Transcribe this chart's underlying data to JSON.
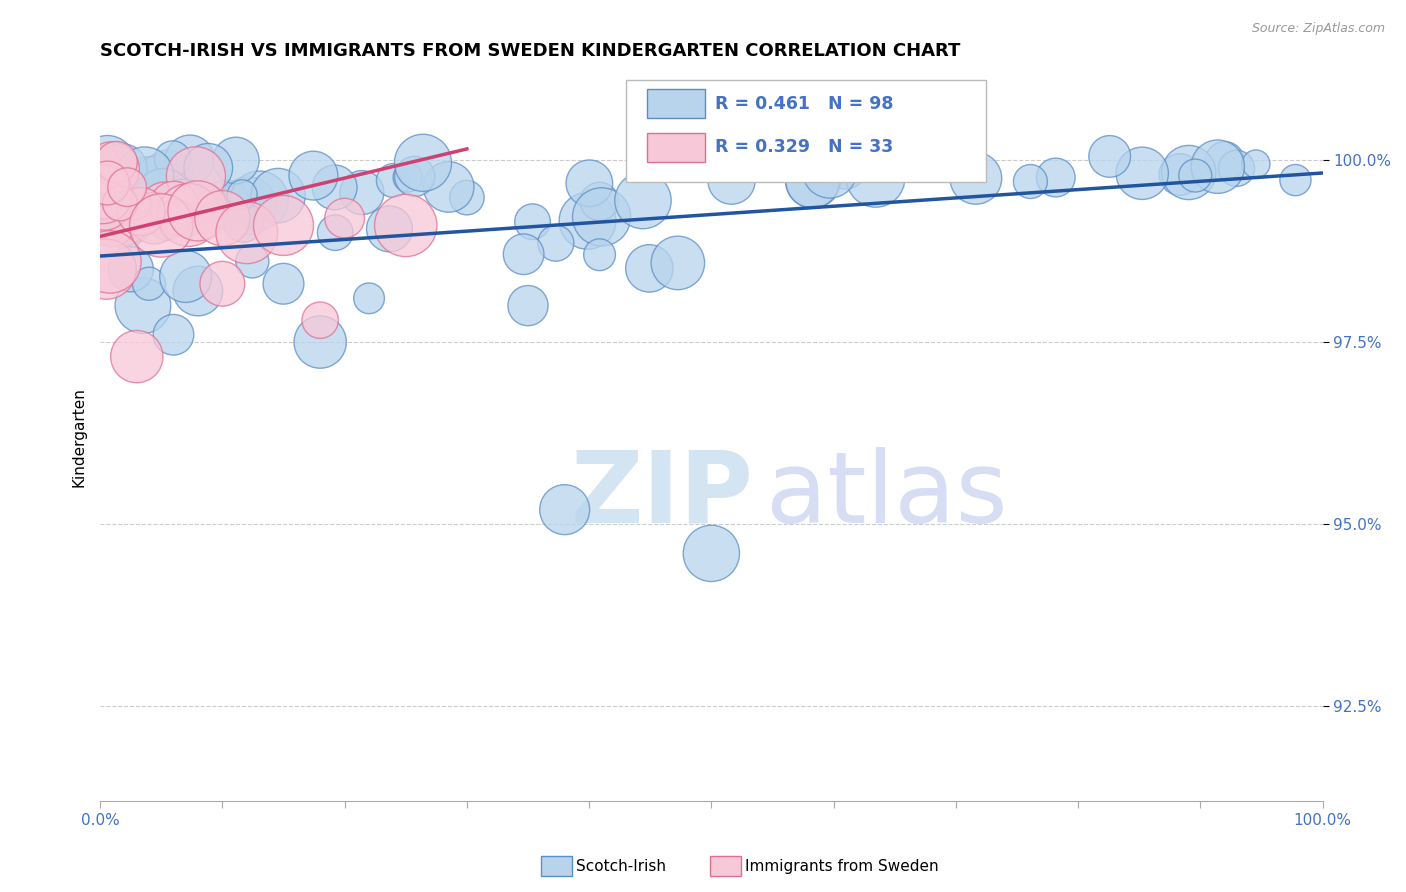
{
  "title": "SCOTCH-IRISH VS IMMIGRANTS FROM SWEDEN KINDERGARTEN CORRELATION CHART",
  "source": "Source: ZipAtlas.com",
  "ylabel": "Kindergarten",
  "ytick_labels": [
    "92.5%",
    "95.0%",
    "97.5%",
    "100.0%"
  ],
  "ytick_values": [
    92.5,
    95.0,
    97.5,
    100.0
  ],
  "xmin": 0.0,
  "xmax": 100.0,
  "ymin": 91.2,
  "ymax": 101.2,
  "blue_R": 0.461,
  "blue_N": 98,
  "pink_R": 0.329,
  "pink_N": 33,
  "blue_color": "#b8d4ed",
  "blue_edge_color": "#5b8ec4",
  "pink_color": "#f7c8d8",
  "pink_edge_color": "#e07090",
  "blue_line_color": "#2255a0",
  "pink_line_color": "#d04070",
  "watermark_zip_color": "#cce0f0",
  "watermark_atlas_color": "#d0d8f0",
  "legend_label_blue": "Scotch-Irish",
  "legend_label_pink": "Immigrants from Sweden",
  "tick_color": "#4472c4",
  "grid_color": "#cccccc"
}
